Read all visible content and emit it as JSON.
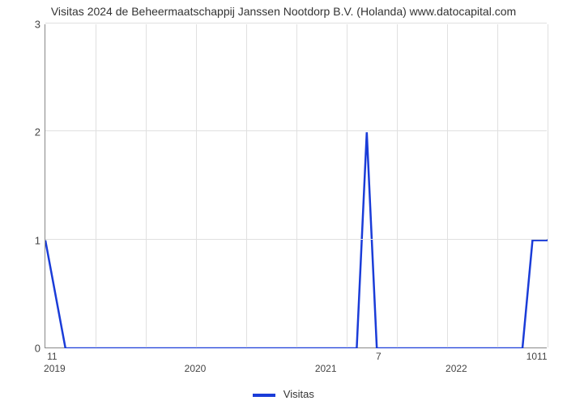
{
  "chart": {
    "type": "line",
    "title": "Visitas 2024 de Beheermaatschappij Janssen Nootdorp B.V. (Holanda) www.datocapital.com",
    "title_fontsize": 14,
    "title_color": "#333333",
    "background_color": "#ffffff",
    "plot_border_color": "#888888",
    "grid_color": "#e0e0e0",
    "line_color": "#1a3cd8",
    "line_width": 2.5,
    "xlim": [
      0,
      100
    ],
    "ylim": [
      0,
      3
    ],
    "ytick_positions": [
      0,
      1,
      2,
      3
    ],
    "ytick_labels": [
      "0",
      "1",
      "2",
      "3"
    ],
    "ygrid_positions_pct": [
      0,
      33.333,
      66.667,
      100
    ],
    "xgrid_positions_pct": [
      10,
      20,
      30,
      40,
      50,
      60,
      70,
      80,
      90,
      100
    ],
    "xtick_major": [
      {
        "pos_pct": 2,
        "label": "2019"
      },
      {
        "pos_pct": 30,
        "label": "2020"
      },
      {
        "pos_pct": 56,
        "label": "2021"
      },
      {
        "pos_pct": 82,
        "label": "2022"
      }
    ],
    "annotations_below": [
      {
        "pos_pct": 1.5,
        "label": "11"
      },
      {
        "pos_pct": 66.5,
        "label": "7"
      },
      {
        "pos_pct": 98,
        "label": "1011"
      }
    ],
    "series": {
      "name": "Visitas",
      "points": [
        {
          "x_pct": 0,
          "y_val": 1.0
        },
        {
          "x_pct": 4,
          "y_val": 0.0
        },
        {
          "x_pct": 62,
          "y_val": 0.0
        },
        {
          "x_pct": 64,
          "y_val": 2.0
        },
        {
          "x_pct": 66,
          "y_val": 0.0
        },
        {
          "x_pct": 95,
          "y_val": 0.0
        },
        {
          "x_pct": 97,
          "y_val": 1.0
        },
        {
          "x_pct": 100,
          "y_val": 1.0
        }
      ]
    },
    "legend_label": "Visitas",
    "label_fontsize": 13,
    "axis_label_color": "#444444"
  }
}
